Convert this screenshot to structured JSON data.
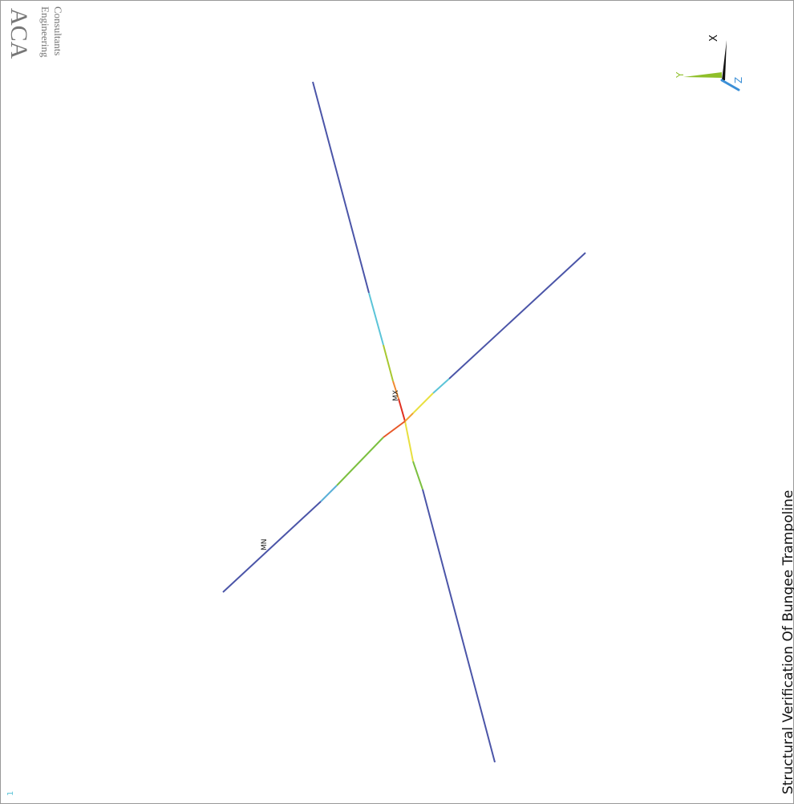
{
  "logo": {
    "name": "ACA",
    "line1": "Engineering",
    "line2": "Consultants"
  },
  "triad": {
    "x": "X",
    "y": "Y",
    "z": "Z"
  },
  "labels": {
    "max": "MX",
    "min": "MN"
  },
  "title": "Structural Verification Of Bungee Trampoline",
  "window_number": "1"
}
